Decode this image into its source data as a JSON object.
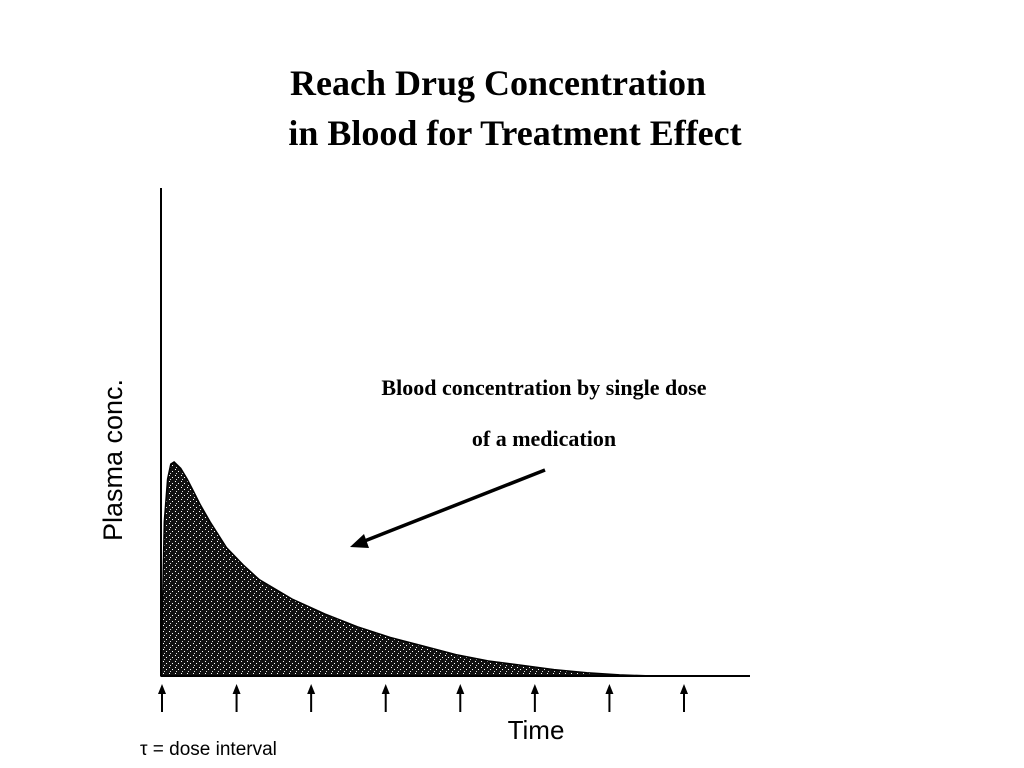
{
  "title": {
    "line1": "Reach Drug Concentration",
    "line2": "in Blood for Treatment Effect"
  },
  "annotation": {
    "line1": "Blood concentration by single dose",
    "line2": "of a medication"
  },
  "chart_data": {
    "type": "area",
    "xlabel": "Time",
    "ylabel": "Plasma conc.",
    "legend_note": "τ = dose interval",
    "dose_markers": 8,
    "x": [
      0,
      0.05,
      0.1,
      0.15,
      0.2,
      0.3,
      0.4,
      0.5,
      0.6,
      0.75,
      1,
      1.25,
      1.5,
      2,
      2.5,
      3,
      3.5,
      4,
      4.5,
      5,
      5.5,
      6,
      6.5,
      7,
      7.5,
      8
    ],
    "y": [
      0,
      0.72,
      0.92,
      0.99,
      1.0,
      0.97,
      0.92,
      0.86,
      0.8,
      0.72,
      0.6,
      0.52,
      0.45,
      0.36,
      0.29,
      0.23,
      0.18,
      0.14,
      0.1,
      0.07,
      0.05,
      0.03,
      0.015,
      0.005,
      0.0,
      0.0
    ],
    "xlim": [
      0,
      8
    ],
    "ylim": [
      0,
      1.0
    ],
    "fill_color": "#111111",
    "grid": false
  }
}
